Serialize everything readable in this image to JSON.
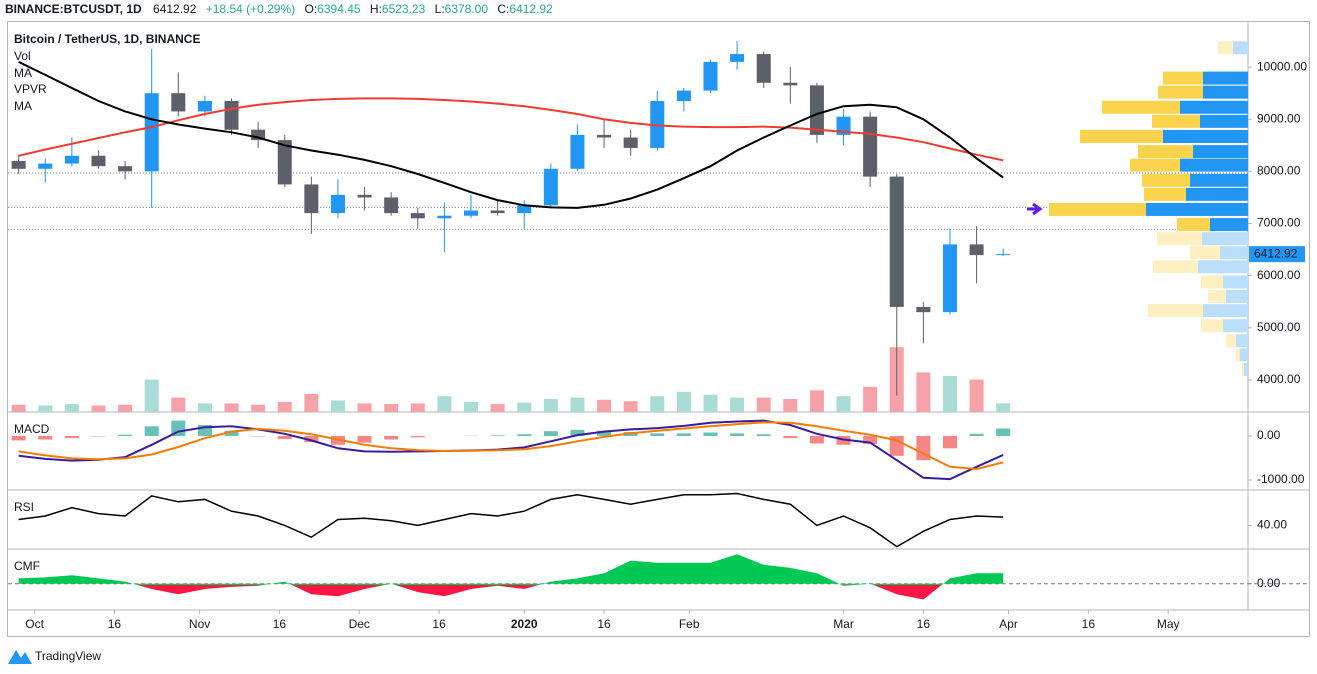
{
  "header": {
    "symbol": "BINANCE:BTCUSDT, 1D",
    "last": "6412.92",
    "change": "+18.54 (+0.29%)",
    "o": "O:",
    "open": "6394.45",
    "h": "H:",
    "high": "6523.23",
    "l": "L:",
    "low": "6378.00",
    "c": "C:",
    "close": "6412.92"
  },
  "footer": {
    "brand": "TradingView"
  },
  "chart_data": [
    {
      "type": "candlestick",
      "title": "Bitcoin / TetherUS, 1D, BINANCE",
      "x": [
        "2019-09-28",
        "2019-10-03",
        "2019-10-08",
        "2019-10-13",
        "2019-10-18",
        "2019-10-23",
        "2019-10-28",
        "2019-11-02",
        "2019-11-07",
        "2019-11-12",
        "2019-11-17",
        "2019-11-22",
        "2019-11-27",
        "2019-12-02",
        "2019-12-07",
        "2019-12-12",
        "2019-12-17",
        "2019-12-22",
        "2019-12-27",
        "2020-01-01",
        "2020-01-06",
        "2020-01-11",
        "2020-01-16",
        "2020-01-21",
        "2020-01-26",
        "2020-01-31",
        "2020-02-05",
        "2020-02-10",
        "2020-02-15",
        "2020-02-20",
        "2020-02-25",
        "2020-03-01",
        "2020-03-06",
        "2020-03-11",
        "2020-03-16",
        "2020-03-21",
        "2020-03-26",
        "2020-03-31"
      ],
      "open": [
        8200,
        8050,
        8150,
        8300,
        8100,
        8000,
        9500,
        9150,
        9350,
        8800,
        8600,
        7750,
        7200,
        7550,
        7500,
        7200,
        7100,
        7150,
        7250,
        7200,
        7350,
        8050,
        8700,
        8650,
        8450,
        9350,
        9550,
        10100,
        10250,
        9700,
        9650,
        8700,
        9050,
        7900,
        5400,
        5300,
        6600,
        6394.45
      ],
      "high": [
        8320,
        8250,
        8650,
        8400,
        8200,
        10350,
        9900,
        9450,
        9400,
        8950,
        8700,
        7900,
        7850,
        7700,
        7600,
        7300,
        7400,
        7550,
        7450,
        7450,
        8150,
        8900,
        9000,
        8800,
        9550,
        9600,
        10150,
        10500,
        10300,
        10000,
        9700,
        9200,
        9150,
        7950,
        5500,
        6900,
        6950,
        6523.23
      ],
      "low": [
        7950,
        7780,
        8100,
        8050,
        7850,
        7300,
        9050,
        9050,
        8700,
        8450,
        7700,
        6800,
        7100,
        7250,
        7150,
        6900,
        6450,
        7100,
        7150,
        6900,
        7300,
        8000,
        8450,
        8300,
        8400,
        9150,
        9500,
        9950,
        9600,
        9300,
        8550,
        8500,
        7700,
        3700,
        4700,
        5250,
        5850,
        6378
      ],
      "close": [
        8050,
        8150,
        8300,
        8100,
        8000,
        9500,
        9150,
        9350,
        8800,
        8600,
        7750,
        7200,
        7550,
        7500,
        7200,
        7100,
        7150,
        7250,
        7200,
        7350,
        8050,
        8700,
        8650,
        8450,
        9350,
        9550,
        10100,
        10250,
        9700,
        9650,
        8700,
        9050,
        7900,
        5400,
        5300,
        6600,
        6394,
        6412.92
      ],
      "series": [
        {
          "name": "MA",
          "color": "#f23b2f",
          "values": [
            8300,
            8420,
            8530,
            8640,
            8750,
            8850,
            8980,
            9100,
            9200,
            9280,
            9330,
            9370,
            9390,
            9400,
            9400,
            9390,
            9370,
            9340,
            9300,
            9250,
            9180,
            9100,
            9000,
            8930,
            8880,
            8860,
            8850,
            8850,
            8860,
            8840,
            8800,
            8760,
            8720,
            8650,
            8560,
            8440,
            8320,
            8210
          ]
        },
        {
          "name": "MA",
          "color": "#000000",
          "values": [
            10100,
            9850,
            9600,
            9350,
            9150,
            9000,
            8900,
            8820,
            8750,
            8650,
            8500,
            8400,
            8320,
            8220,
            8100,
            7950,
            7780,
            7600,
            7450,
            7350,
            7310,
            7300,
            7360,
            7480,
            7650,
            7870,
            8100,
            8400,
            8650,
            8880,
            9100,
            9250,
            9280,
            9230,
            9000,
            8650,
            8250,
            7880
          ]
        }
      ],
      "volume": {
        "name": "Vol",
        "values": [
          10,
          9,
          11,
          9,
          10,
          45,
          20,
          12,
          12,
          10,
          14,
          25,
          16,
          12,
          11,
          12,
          22,
          14,
          11,
          13,
          18,
          20,
          17,
          15,
          22,
          28,
          24,
          20,
          20,
          18,
          30,
          22,
          35,
          90,
          55,
          50,
          45,
          12
        ],
        "ylim": [
          0,
          100
        ],
        "up_color": "#a8dcd4",
        "down_color": "#f5a3a8"
      },
      "vpvr": {
        "name": "VPVR",
        "price": [
          10370,
          9790,
          9520,
          9230,
          8960,
          8670,
          8380,
          8120,
          7830,
          7560,
          7270,
          6980,
          6710,
          6440,
          6170,
          5880,
          5600,
          5330,
          5040,
          4750,
          4480,
          4200
        ],
        "up": [
          15,
          45,
          45,
          68,
          48,
          85,
          55,
          68,
          58,
          62,
          102,
          38,
          46,
          28,
          50,
          25,
          22,
          45,
          25,
          12,
          8,
          4
        ],
        "down": [
          15,
          40,
          45,
          78,
          48,
          83,
          55,
          50,
          48,
          42,
          97,
          33,
          45,
          30,
          45,
          22,
          18,
          55,
          22,
          10,
          4,
          2
        ],
        "in_value_area": [
          false,
          true,
          true,
          true,
          true,
          true,
          true,
          true,
          true,
          true,
          true,
          true,
          false,
          false,
          false,
          false,
          false,
          false,
          false,
          false,
          false,
          false
        ]
      },
      "levels": [
        7970,
        7310,
        6890
      ],
      "up_color": "#2196f3",
      "down_color": "#5d606b",
      "ylim": [
        3385,
        10712
      ],
      "yticks": [
        {
          "value": 10000,
          "label": "10000.00"
        },
        {
          "value": 9000,
          "label": "9000.00"
        },
        {
          "value": 8000,
          "label": "8000.00"
        },
        {
          "value": 7000,
          "label": "7000.00"
        },
        {
          "value": 6000,
          "label": "6000.00"
        },
        {
          "value": 5000,
          "label": "5000.00"
        },
        {
          "value": 4000,
          "label": "4000.00"
        }
      ],
      "xlim": [
        "2019-09-26",
        "2020-05-16"
      ],
      "xticks": [
        {
          "value": "2019-10-01",
          "label": "Oct"
        },
        {
          "value": "2019-10-16",
          "label": "16"
        },
        {
          "value": "2019-11-01",
          "label": "Nov"
        },
        {
          "value": "2019-11-16",
          "label": "16"
        },
        {
          "value": "2019-12-01",
          "label": "Dec"
        },
        {
          "value": "2019-12-16",
          "label": "16"
        },
        {
          "value": "2020-01-01",
          "label": "2020"
        },
        {
          "value": "2020-01-16",
          "label": "16"
        },
        {
          "value": "2020-02-01",
          "label": "Feb"
        },
        {
          "value": "2020-03-01",
          "label": "Mar"
        },
        {
          "value": "2020-03-16",
          "label": "16"
        },
        {
          "value": "2020-04-01",
          "label": "Apr"
        },
        {
          "value": "2020-04-16",
          "label": "16"
        },
        {
          "value": "2020-05-01",
          "label": "May"
        }
      ]
    },
    {
      "type": "macd",
      "title": "MACD",
      "series": [
        {
          "name": "MACD",
          "color": "#3a1c9e",
          "values": [
            -450,
            -520,
            -560,
            -540,
            -480,
            -200,
            100,
            200,
            220,
            150,
            50,
            -100,
            -280,
            -350,
            -360,
            -350,
            -340,
            -330,
            -310,
            -260,
            -120,
            20,
            100,
            150,
            180,
            230,
            300,
            330,
            350,
            250,
            50,
            -80,
            -150,
            -550,
            -950,
            -980,
            -700,
            -430
          ]
        },
        {
          "name": "Signal",
          "color": "#f57c00",
          "values": [
            -350,
            -440,
            -510,
            -530,
            -510,
            -420,
            -250,
            -50,
            100,
            160,
            120,
            40,
            -80,
            -200,
            -280,
            -320,
            -340,
            -335,
            -325,
            -300,
            -230,
            -120,
            -20,
            60,
            120,
            170,
            220,
            270,
            310,
            300,
            220,
            120,
            30,
            -100,
            -400,
            -700,
            -750,
            -600
          ]
        }
      ],
      "histogram": [
        -100,
        -80,
        -50,
        -10,
        30,
        220,
        350,
        250,
        120,
        -10,
        -70,
        -140,
        -200,
        -150,
        -80,
        -30,
        0,
        5,
        15,
        40,
        110,
        140,
        120,
        90,
        60,
        60,
        80,
        60,
        40,
        -50,
        -170,
        -200,
        -180,
        -450,
        -550,
        -280,
        50,
        170
      ],
      "up_color": "#26a69a",
      "down_color": "#ef5350",
      "ylim": [
        -1227,
        545
      ],
      "yticks": [
        {
          "value": 0,
          "label": "0.00"
        },
        {
          "value": -1000,
          "label": "-1000.00"
        }
      ]
    },
    {
      "type": "line",
      "title": "RSI",
      "color": "#000000",
      "values": [
        45,
        48,
        55,
        50,
        48,
        65,
        60,
        62,
        52,
        48,
        40,
        30,
        45,
        46,
        44,
        40,
        45,
        50,
        48,
        52,
        62,
        66,
        62,
        58,
        62,
        66,
        66,
        67,
        62,
        58,
        40,
        48,
        38,
        22,
        35,
        45,
        48,
        47
      ],
      "ylim": [
        20,
        70
      ],
      "yticks": [
        {
          "value": 40,
          "label": "40.00"
        }
      ]
    },
    {
      "type": "area",
      "title": "CMF",
      "up_color": "#00c853",
      "down_color": "#ff1744",
      "values": [
        0.05,
        0.06,
        0.08,
        0.05,
        0.02,
        -0.05,
        -0.1,
        -0.05,
        -0.03,
        -0.02,
        0.02,
        -0.1,
        -0.12,
        -0.05,
        0,
        -0.08,
        -0.12,
        -0.05,
        -0.02,
        -0.05,
        0.02,
        0.05,
        0.1,
        0.22,
        0.2,
        0.2,
        0.2,
        0.28,
        0.18,
        0.15,
        0.1,
        -0.02,
        0,
        -0.1,
        -0.15,
        0.05,
        0.1,
        0.1
      ],
      "ylim": [
        -0.25,
        0.33
      ],
      "yticks": [
        {
          "value": 0,
          "label": "0.00"
        }
      ]
    }
  ]
}
